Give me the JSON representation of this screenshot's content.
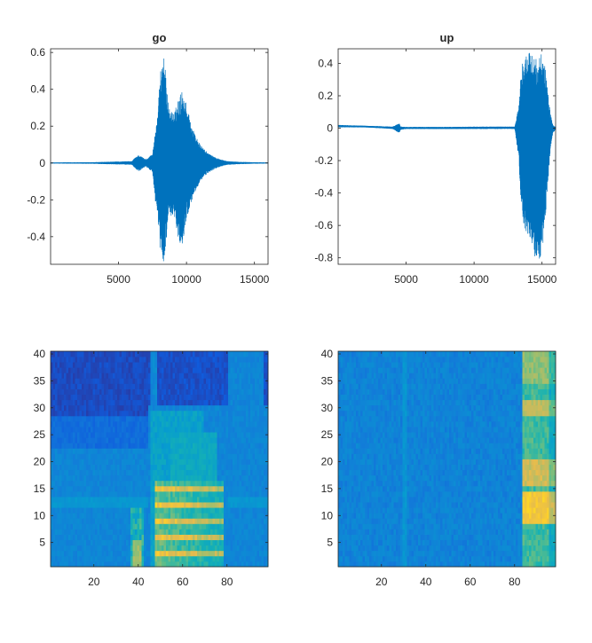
{
  "chart_data": [
    {
      "type": "line",
      "title": "go",
      "xlim": [
        1,
        16000
      ],
      "ylim": [
        -0.55,
        0.62
      ],
      "xticks": [
        5000,
        10000,
        15000
      ],
      "yticks": [
        -0.4,
        -0.2,
        0,
        0.2,
        0.4,
        0.6
      ],
      "xtick_labels": [
        "5000",
        "10000",
        "15000"
      ],
      "ytick_labels": [
        "-0.4",
        "-0.2",
        "0",
        "0.2",
        "0.4",
        "0.6"
      ],
      "color": "#0072BD",
      "series": [
        {
          "envelope_x": [
            1,
            3000,
            6000,
            6200,
            6500,
            6800,
            7000,
            7500,
            7900,
            8100,
            8300,
            8700,
            9100,
            9400,
            9700,
            10000,
            10500,
            11000,
            11500,
            12000,
            12500,
            13000,
            14000,
            15000,
            16000
          ],
          "envelope_max": [
            0.003,
            0.004,
            0.01,
            0.03,
            0.045,
            0.03,
            0.02,
            0.05,
            0.3,
            0.5,
            0.62,
            0.3,
            0.27,
            0.35,
            0.4,
            0.32,
            0.18,
            0.1,
            0.06,
            0.035,
            0.02,
            0.01,
            0.006,
            0.004,
            0.003
          ],
          "envelope_min": [
            -0.003,
            -0.004,
            -0.01,
            -0.03,
            -0.045,
            -0.03,
            -0.02,
            -0.05,
            -0.35,
            -0.5,
            -0.55,
            -0.3,
            -0.28,
            -0.42,
            -0.45,
            -0.3,
            -0.18,
            -0.1,
            -0.06,
            -0.035,
            -0.02,
            -0.01,
            -0.006,
            -0.004,
            -0.003
          ]
        }
      ]
    },
    {
      "type": "line",
      "title": "up",
      "xlim": [
        1,
        16000
      ],
      "ylim": [
        -0.84,
        0.49
      ],
      "xticks": [
        5000,
        10000,
        15000
      ],
      "yticks": [
        -0.8,
        -0.6,
        -0.4,
        -0.2,
        0,
        0.2,
        0.4
      ],
      "xtick_labels": [
        "5000",
        "10000",
        "15000"
      ],
      "ytick_labels": [
        "-0.8",
        "-0.6",
        "-0.4",
        "-0.2",
        "0",
        "0.2",
        "0.4"
      ],
      "color": "#0072BD",
      "series": [
        {
          "envelope_x": [
            1,
            2000,
            4000,
            4500,
            4600,
            5000,
            8000,
            11000,
            13000,
            13300,
            13500,
            13800,
            14200,
            14600,
            15000,
            15300,
            15600,
            15800,
            16000
          ],
          "envelope_max": [
            0.02,
            0.015,
            0.01,
            0.03,
            0.01,
            0.008,
            0.008,
            0.01,
            0.01,
            0.15,
            0.4,
            0.45,
            0.48,
            0.45,
            0.46,
            0.35,
            0.1,
            0.02,
            0.01
          ],
          "envelope_min": [
            0.005,
            0.005,
            -0.005,
            -0.03,
            -0.01,
            -0.005,
            -0.005,
            -0.005,
            -0.005,
            -0.2,
            -0.55,
            -0.65,
            -0.7,
            -0.84,
            -0.78,
            -0.5,
            -0.15,
            -0.03,
            -0.01
          ],
          "baseline": [
            [
              1,
              0.012
            ],
            [
              2000,
              0.01
            ],
            [
              4000,
              0.002
            ],
            [
              8000,
              0.0
            ],
            [
              12000,
              0.003
            ],
            [
              13200,
              0.004
            ]
          ]
        }
      ]
    },
    {
      "type": "heatmap",
      "xlim": [
        0.5,
        98.5
      ],
      "ylim": [
        0.5,
        40.5
      ],
      "xticks": [
        20,
        40,
        60,
        80
      ],
      "yticks": [
        5,
        10,
        15,
        20,
        25,
        30,
        35,
        40
      ],
      "xtick_labels": [
        "20",
        "40",
        "60",
        "80"
      ],
      "ytick_labels": [
        "5",
        "10",
        "15",
        "20",
        "25",
        "30",
        "35",
        "40"
      ],
      "colormap": "parula",
      "n_cols": 98,
      "n_rows": 40
    },
    {
      "type": "heatmap",
      "xlim": [
        0.5,
        98.5
      ],
      "ylim": [
        0.5,
        40.5
      ],
      "xticks": [
        20,
        40,
        60,
        80
      ],
      "yticks": [
        5,
        10,
        15,
        20,
        25,
        30,
        35,
        40
      ],
      "xtick_labels": [
        "20",
        "40",
        "60",
        "80"
      ],
      "ytick_labels": [
        "5",
        "10",
        "15",
        "20",
        "25",
        "30",
        "35",
        "40"
      ],
      "colormap": "parula",
      "n_cols": 98,
      "n_rows": 40
    }
  ]
}
